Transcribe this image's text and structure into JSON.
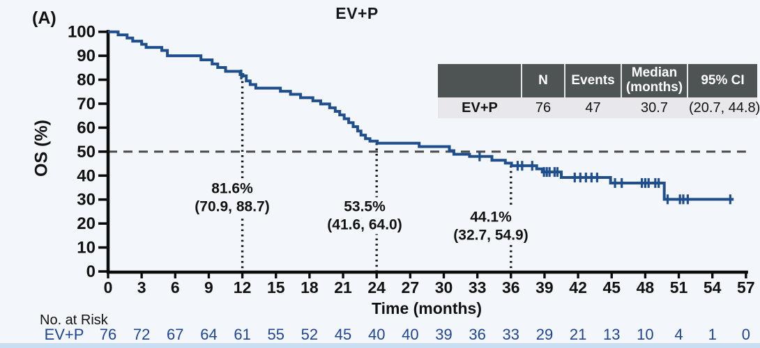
{
  "panel_label": "(A)",
  "title": "EV+P",
  "colors": {
    "background": "#f3f6fa",
    "curve": "#1f4e8c",
    "axis": "#0b0b0b",
    "reference_dash": "#4a4a4a",
    "landmark_dots": "#15151f",
    "risk_text": "#1e4494",
    "table_header_bg": "#4e5453",
    "table_header_text": "#ffffff",
    "table_body_bg": "#e8e8ec",
    "bottom_strip": "#c9def1"
  },
  "stats_table": {
    "headers": [
      "",
      "N",
      "Events",
      "Median\n(months)",
      "95% CI"
    ],
    "row": [
      "EV+P",
      "76",
      "47",
      "30.7",
      "(20.7, 44.8)"
    ]
  },
  "annotations": [
    {
      "pct": "81.6%",
      "ci": "(70.9, 88.7)",
      "month": 12
    },
    {
      "pct": "53.5%",
      "ci": "(41.6, 64.0)",
      "month": 24
    },
    {
      "pct": "44.1%",
      "ci": "(32.7, 54.9)",
      "month": 36
    }
  ],
  "risk_table": {
    "heading": "No. at Risk",
    "group_label": "EV+P",
    "times": [
      0,
      3,
      6,
      9,
      12,
      15,
      18,
      21,
      24,
      27,
      30,
      33,
      36,
      39,
      42,
      45,
      48,
      51,
      54,
      57
    ],
    "values": [
      76,
      72,
      67,
      64,
      61,
      55,
      52,
      45,
      40,
      40,
      39,
      36,
      33,
      29,
      21,
      13,
      10,
      4,
      1,
      0
    ]
  },
  "chart_data": {
    "type": "line",
    "subtype": "kaplan-meier-step",
    "title": "EV+P",
    "xlabel": "Time (months)",
    "ylabel": "OS (%)",
    "xlim": [
      0,
      57
    ],
    "ylim": [
      0,
      100
    ],
    "x_ticks": [
      0,
      3,
      6,
      9,
      12,
      15,
      18,
      21,
      24,
      27,
      30,
      33,
      36,
      39,
      42,
      45,
      48,
      51,
      54,
      57
    ],
    "y_ticks": [
      0,
      10,
      20,
      30,
      40,
      50,
      60,
      70,
      80,
      90,
      100
    ],
    "grid": false,
    "reference_line_y": 50,
    "landmarks": [
      {
        "month": 12,
        "value": 81.6,
        "ci_low": 70.9,
        "ci_high": 88.7
      },
      {
        "month": 24,
        "value": 53.5,
        "ci_low": 41.6,
        "ci_high": 64.0
      },
      {
        "month": 36,
        "value": 44.1,
        "ci_low": 32.7,
        "ci_high": 54.9
      }
    ],
    "summary": {
      "group": "EV+P",
      "n": 76,
      "events": 47,
      "median_months": 30.7,
      "ci_95": [
        20.7,
        44.8
      ]
    },
    "series": [
      {
        "name": "EV+P",
        "color": "#1f4e8c",
        "end_time": 55.9,
        "steps": [
          [
            0,
            100
          ],
          [
            0.9,
            98.7
          ],
          [
            1.7,
            97.4
          ],
          [
            2.2,
            96.1
          ],
          [
            3.0,
            94.8
          ],
          [
            3.4,
            93.5
          ],
          [
            4.8,
            92.2
          ],
          [
            5.3,
            90.0
          ],
          [
            8.3,
            88.3
          ],
          [
            9.3,
            86.6
          ],
          [
            9.8,
            85.1
          ],
          [
            10.5,
            83.5
          ],
          [
            11.8,
            82.2
          ],
          [
            12.05,
            81.6
          ],
          [
            12.35,
            79.5
          ],
          [
            12.7,
            78.0
          ],
          [
            13.2,
            76.5
          ],
          [
            15.4,
            75.2
          ],
          [
            16.3,
            73.9
          ],
          [
            17.2,
            72.5
          ],
          [
            18.3,
            71.2
          ],
          [
            19.0,
            69.9
          ],
          [
            19.8,
            68.3
          ],
          [
            20.3,
            66.8
          ],
          [
            20.7,
            65.3
          ],
          [
            21.1,
            63.7
          ],
          [
            21.5,
            62.1
          ],
          [
            21.9,
            60.4
          ],
          [
            22.3,
            58.6
          ],
          [
            22.6,
            56.9
          ],
          [
            23.0,
            55.4
          ],
          [
            23.4,
            54.4
          ],
          [
            24.05,
            53.5
          ],
          [
            27.8,
            52.1
          ],
          [
            30.5,
            50.4
          ],
          [
            30.9,
            48.9
          ],
          [
            32.3,
            48.0
          ],
          [
            34.3,
            46.4
          ],
          [
            35.5,
            45.2
          ],
          [
            36.05,
            44.1
          ],
          [
            38.3,
            42.8
          ],
          [
            38.8,
            41.5
          ],
          [
            40.5,
            39.2
          ],
          [
            44.9,
            36.9
          ],
          [
            49.7,
            30.1
          ]
        ],
        "censors": [
          [
            11.9,
            82.2
          ],
          [
            33.2,
            48.0
          ],
          [
            36.6,
            44.1
          ],
          [
            37.0,
            44.1
          ],
          [
            37.9,
            44.1
          ],
          [
            38.95,
            41.5
          ],
          [
            39.2,
            41.5
          ],
          [
            39.45,
            41.5
          ],
          [
            39.9,
            41.5
          ],
          [
            40.15,
            41.5
          ],
          [
            41.7,
            39.2
          ],
          [
            42.2,
            39.2
          ],
          [
            42.7,
            39.2
          ],
          [
            43.2,
            39.2
          ],
          [
            43.7,
            39.2
          ],
          [
            45.3,
            36.9
          ],
          [
            45.9,
            36.9
          ],
          [
            47.7,
            36.9
          ],
          [
            48.0,
            36.9
          ],
          [
            48.3,
            36.9
          ],
          [
            48.9,
            36.9
          ],
          [
            49.2,
            36.9
          ],
          [
            50.0,
            30.1
          ],
          [
            51.1,
            30.1
          ],
          [
            51.4,
            30.1
          ],
          [
            51.8,
            30.1
          ],
          [
            55.6,
            30.1
          ]
        ]
      }
    ]
  }
}
